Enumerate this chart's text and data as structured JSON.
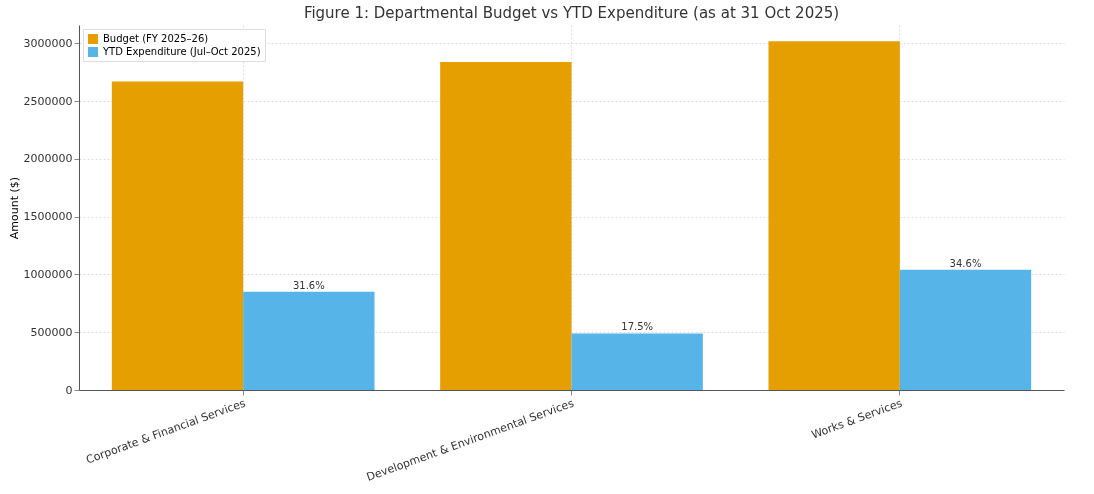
{
  "chart_data": {
    "type": "bar",
    "title": "Figure 1: Departmental Budget vs YTD Expenditure (as at 31 Oct 2025)",
    "ylabel": "Amount ($)",
    "categories": [
      "Corporate & Financial Services",
      "Development & Environmental Services",
      "Works & Services"
    ],
    "series": [
      {
        "name": "Budget (FY 2025–26)",
        "color": "#e69f00",
        "values": [
          2670000,
          2840000,
          3020000
        ]
      },
      {
        "name": "YTD Expenditure (Jul–Oct 2025)",
        "color": "#56b4e9",
        "values": [
          850000,
          490000,
          1040000
        ]
      }
    ],
    "annotations": [
      "31.6%",
      "17.5%",
      "34.6%"
    ],
    "ylim": [
      0,
      3160000
    ],
    "yticks": [
      0,
      500000,
      1000000,
      1500000,
      2000000,
      2500000,
      3000000
    ],
    "grid": true,
    "legend": "top left"
  }
}
